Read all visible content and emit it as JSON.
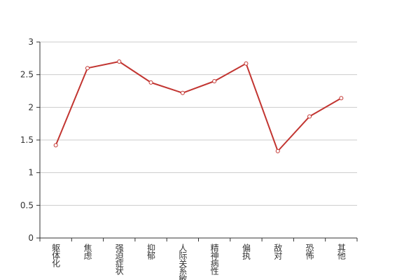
{
  "chart_data": {
    "type": "line",
    "categories": [
      "躯体化",
      "焦虑",
      "强迫症状",
      "抑郁",
      "人际关系敏感",
      "精神病性",
      "偏执",
      "敌对",
      "恐怖",
      "其他"
    ],
    "values": [
      1.42,
      2.6,
      2.7,
      2.38,
      2.22,
      2.4,
      2.67,
      1.33,
      1.86,
      2.14
    ],
    "color": "#c23531",
    "ylim": [
      0,
      3
    ],
    "yticks": [
      0,
      0.5,
      1,
      1.5,
      2,
      2.5,
      3
    ],
    "grid": true
  }
}
